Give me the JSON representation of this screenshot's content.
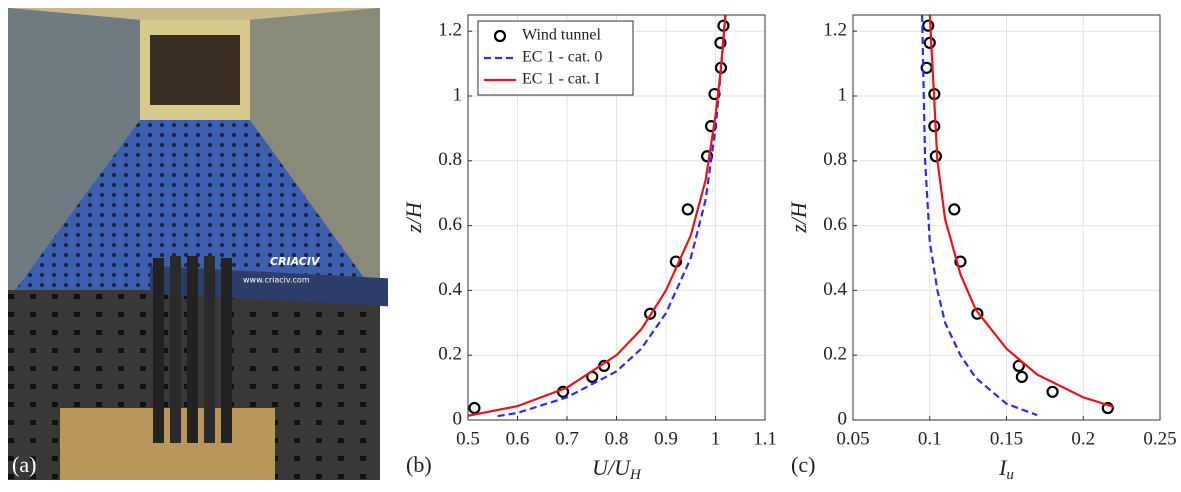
{
  "photo": {
    "panel_label": "(a)",
    "banner": "CRIACIV",
    "banner_url": "www.criaciv.com"
  },
  "chart_data": [
    {
      "type": "line",
      "panel_label": "(b)",
      "xlabel": "U/U",
      "xlabel_subscript": "H",
      "ylabel": "z/H",
      "xlim": [
        0.5,
        1.1
      ],
      "xticks": [
        0.5,
        0.6,
        0.7,
        0.8,
        0.9,
        1,
        1.1
      ],
      "ylim": [
        0,
        1.25
      ],
      "yticks": [
        0,
        0.2,
        0.4,
        0.6,
        0.8,
        1,
        1.2
      ],
      "grid": true,
      "legend": "upper left",
      "series": [
        {
          "name": "Wind tunnel",
          "color": "#000000",
          "marker": "o",
          "x": [
            0.513,
            0.692,
            0.751,
            0.775,
            0.868,
            0.92,
            0.944,
            0.983,
            0.991,
            0.998,
            1.011,
            1.01,
            1.016
          ],
          "values": [
            0.037,
            0.087,
            0.133,
            0.167,
            0.328,
            0.489,
            0.65,
            0.814,
            0.907,
            1.006,
            1.087,
            1.164,
            1.217
          ]
        },
        {
          "name": "EC 1 - cat. 0",
          "color": "#2b2bff",
          "linestyle": "dashed",
          "x": [
            0.56,
            0.6,
            0.7,
            0.8,
            0.85,
            0.9,
            0.95,
            0.98,
            1.0,
            1.01,
            1.02
          ],
          "values": [
            0.012,
            0.022,
            0.07,
            0.15,
            0.22,
            0.33,
            0.5,
            0.68,
            0.9,
            1.06,
            1.25
          ]
        },
        {
          "name": "EC 1 - cat. I",
          "color": "#e8141c",
          "linestyle": "solid",
          "x": [
            0.5,
            0.6,
            0.7,
            0.8,
            0.85,
            0.9,
            0.95,
            0.98,
            1.0,
            1.01,
            1.02
          ],
          "values": [
            0.013,
            0.043,
            0.1,
            0.2,
            0.28,
            0.4,
            0.57,
            0.74,
            0.94,
            1.07,
            1.25
          ]
        }
      ]
    },
    {
      "type": "line",
      "panel_label": "(c)",
      "xlabel": "I",
      "xlabel_subscript": "u",
      "ylabel": "z/H",
      "xlim": [
        0.05,
        0.25
      ],
      "xticks": [
        0.05,
        0.1,
        0.15,
        0.2,
        0.25
      ],
      "ylim": [
        0,
        1.25
      ],
      "yticks": [
        0,
        0.2,
        0.4,
        0.6,
        0.8,
        1,
        1.2
      ],
      "grid": true,
      "series": [
        {
          "color": "#000000",
          "marker": "o",
          "x": [
            0.216,
            0.18,
            0.16,
            0.158,
            0.131,
            0.12,
            0.116,
            0.104,
            0.103,
            0.103,
            0.098,
            0.1,
            0.099
          ],
          "values": [
            0.037,
            0.087,
            0.133,
            0.167,
            0.328,
            0.489,
            0.65,
            0.814,
            0.907,
            1.006,
            1.087,
            1.164,
            1.217
          ]
        },
        {
          "color": "#2b2bff",
          "linestyle": "dashed",
          "x": [
            0.095,
            0.097,
            0.1,
            0.105,
            0.11,
            0.12,
            0.13,
            0.15,
            0.17
          ],
          "values": [
            1.25,
            0.8,
            0.55,
            0.4,
            0.3,
            0.2,
            0.13,
            0.05,
            0.015
          ]
        },
        {
          "color": "#e8141c",
          "linestyle": "solid",
          "x": [
            0.1,
            0.105,
            0.11,
            0.12,
            0.13,
            0.15,
            0.17,
            0.2,
            0.22
          ],
          "values": [
            1.25,
            0.8,
            0.62,
            0.45,
            0.34,
            0.22,
            0.14,
            0.07,
            0.04
          ]
        }
      ]
    }
  ]
}
